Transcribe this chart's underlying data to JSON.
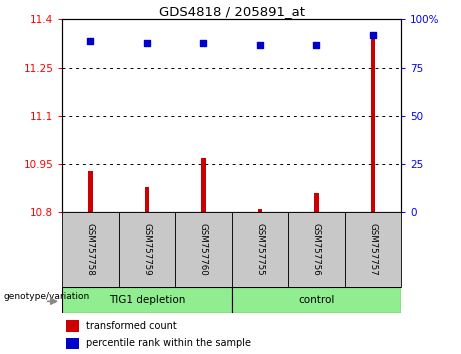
{
  "title": "GDS4818 / 205891_at",
  "samples": [
    "GSM757758",
    "GSM757759",
    "GSM757760",
    "GSM757755",
    "GSM757756",
    "GSM757757"
  ],
  "group_labels": [
    "TIG1 depletion",
    "control"
  ],
  "group_split": 3,
  "red_values": [
    10.93,
    10.88,
    10.97,
    10.81,
    10.86,
    11.35
  ],
  "blue_values": [
    89,
    88,
    88,
    87,
    87,
    92
  ],
  "ylim_left": [
    10.8,
    11.4
  ],
  "ylim_right": [
    0,
    100
  ],
  "yticks_left": [
    10.8,
    10.95,
    11.1,
    11.25,
    11.4
  ],
  "ytick_labels_left": [
    "10.8",
    "10.95",
    "11.1",
    "11.25",
    "11.4"
  ],
  "yticks_right": [
    0,
    25,
    50,
    75,
    100
  ],
  "ytick_labels_right": [
    "0",
    "25",
    "50",
    "75",
    "100%"
  ],
  "gridlines": [
    10.95,
    11.1,
    11.25
  ],
  "bar_color": "#cc0000",
  "dot_color": "#0000cc",
  "sample_box_color": "#c8c8c8",
  "group_box_color": "#90EE90",
  "plot_bg": "#ffffff",
  "legend_red": "transformed count",
  "legend_blue": "percentile rank within the sample",
  "genotype_label": "genotype/variation",
  "bar_width": 0.08,
  "dot_size": 18
}
